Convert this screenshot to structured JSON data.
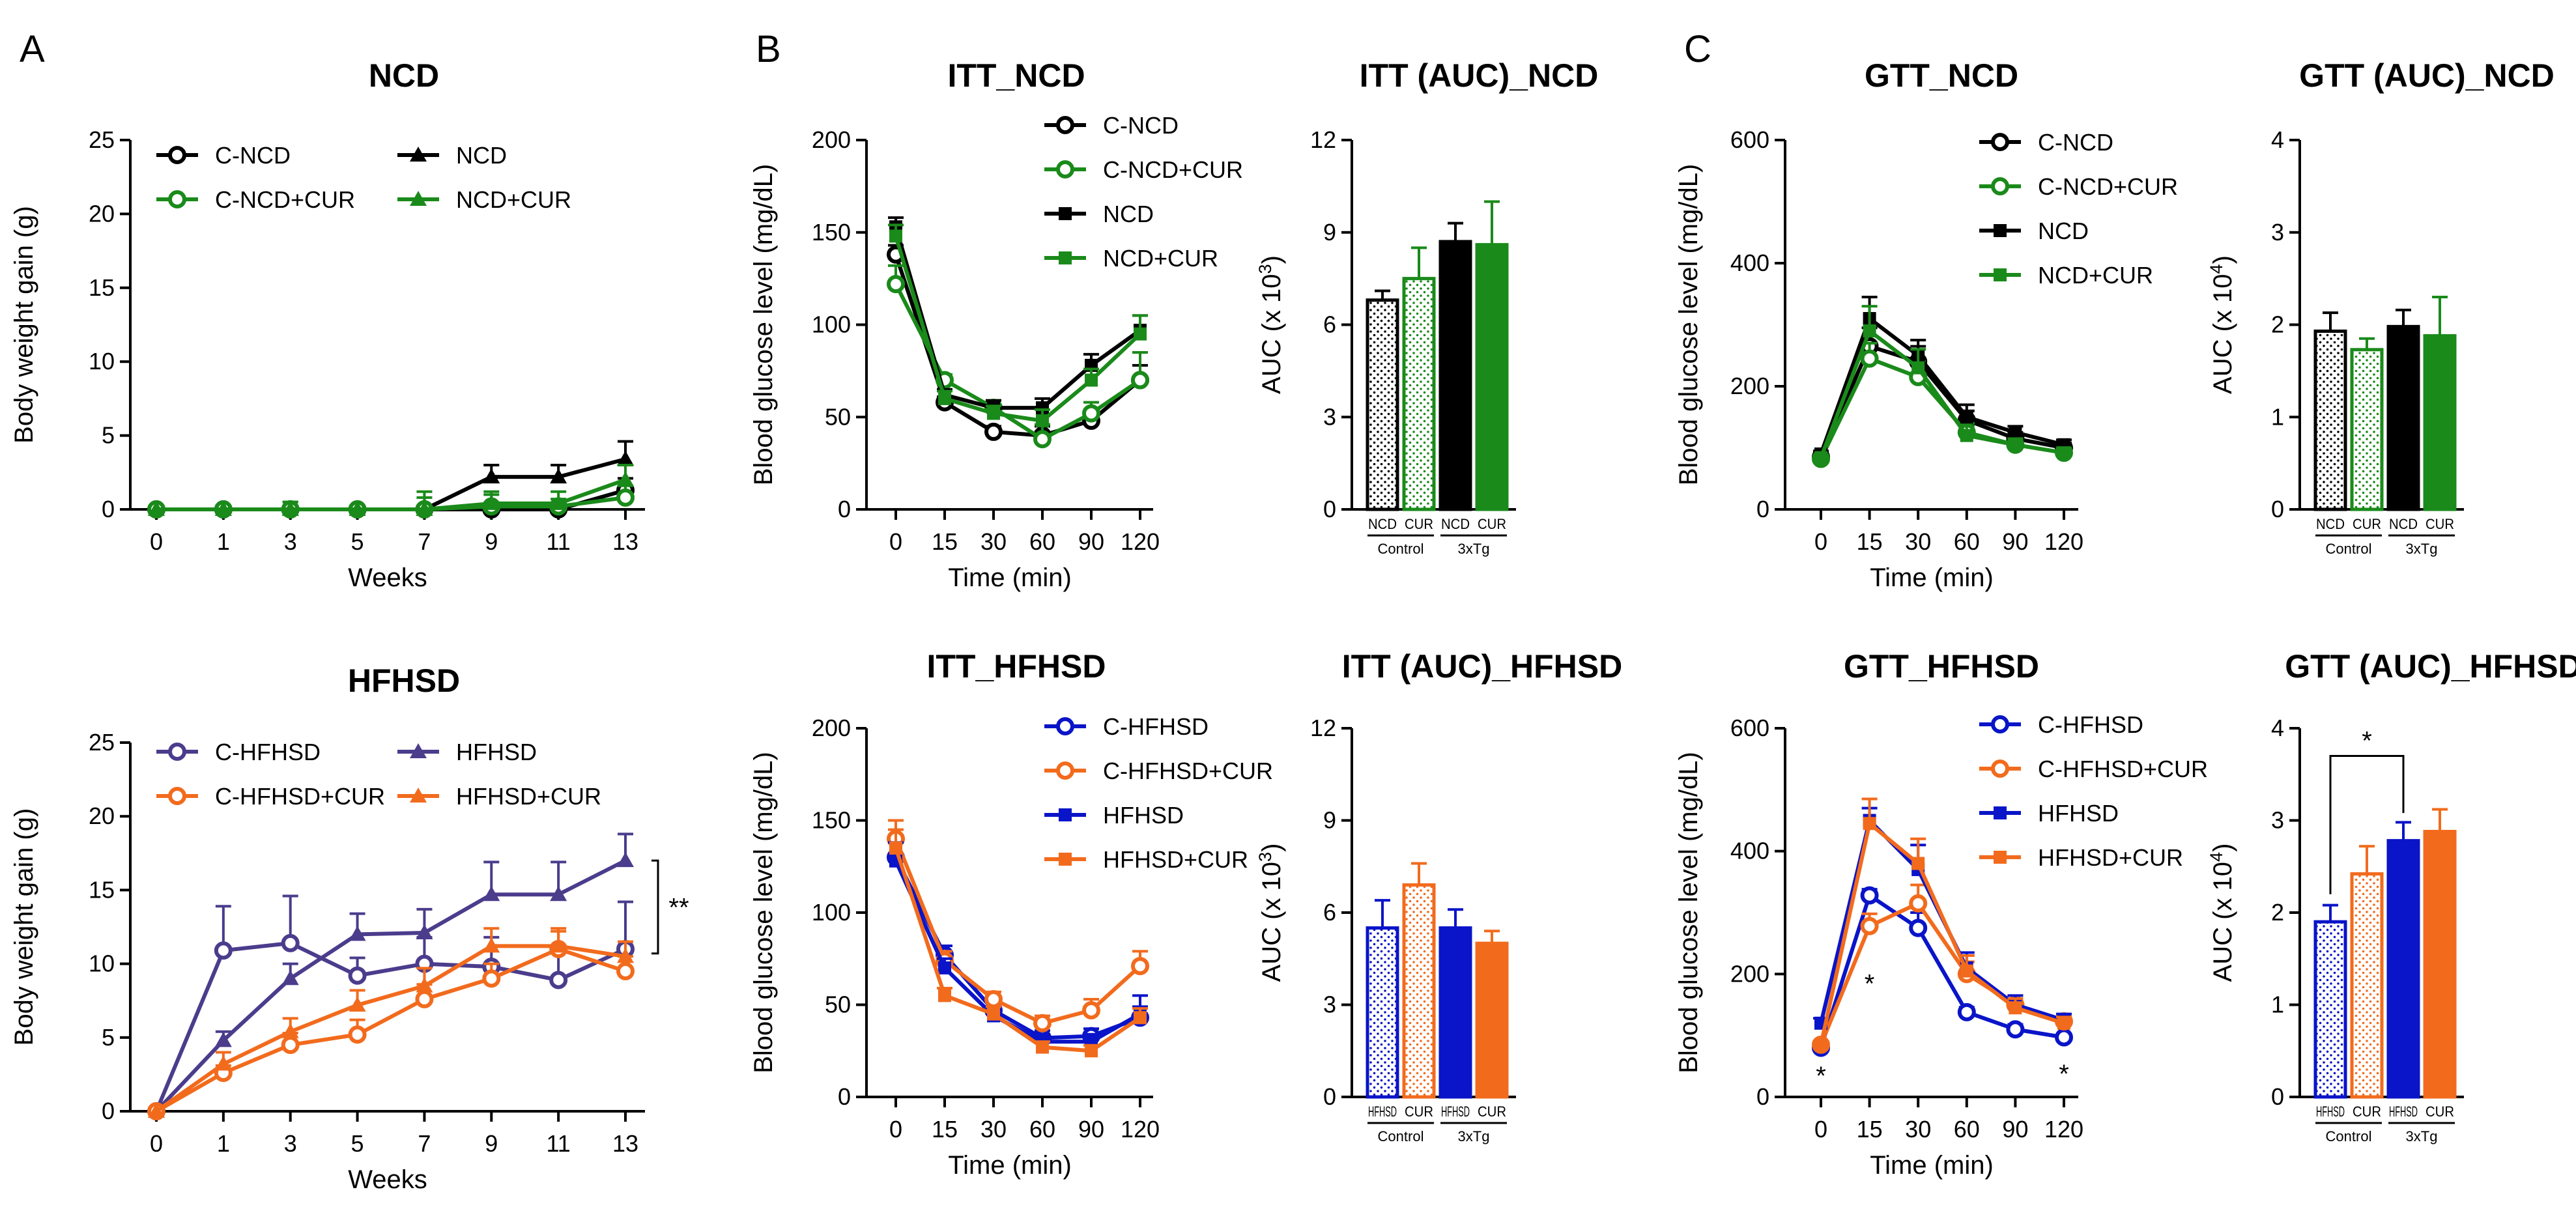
{
  "panel_letters": [
    "A",
    "B",
    "C"
  ],
  "colors": {
    "black": "#000000",
    "green": "#1a8a1a",
    "blue": "#0a14c8",
    "orange": "#f26b1d",
    "purple": "#4b3c8c"
  },
  "chart_data": [
    {
      "id": "bw_ncd",
      "type": "line",
      "title": "NCD",
      "xlabel": "Weeks",
      "ylabel": "Body weight gain (g)",
      "x": [
        "0",
        "1",
        "3",
        "5",
        "7",
        "9",
        "11",
        "13"
      ],
      "ylim": [
        0,
        25
      ],
      "yticks": [
        0,
        5,
        10,
        15,
        20,
        25
      ],
      "legend": "top-left",
      "legend_cols": 2,
      "series": [
        {
          "name": "C-NCD",
          "color": "black",
          "marker": "circle-open",
          "values": [
            0,
            0,
            0,
            0,
            0,
            0,
            0,
            1.3
          ],
          "errors": [
            0,
            0,
            0,
            0,
            0,
            0.3,
            0.3,
            0.8
          ]
        },
        {
          "name": "NCD",
          "color": "black",
          "marker": "triangle",
          "values": [
            0,
            0,
            0,
            0,
            0,
            2.2,
            2.2,
            3.4
          ],
          "errors": [
            0,
            0,
            0,
            0,
            0,
            0.8,
            0.8,
            1.2
          ]
        },
        {
          "name": "C-NCD+CUR",
          "color": "green",
          "marker": "circle-open",
          "values": [
            0,
            0,
            0,
            0,
            0,
            0.2,
            0.2,
            0.8
          ],
          "errors": [
            0,
            0,
            0.5,
            0,
            1.2,
            0.8,
            0.5,
            0.8
          ]
        },
        {
          "name": "NCD+CUR",
          "color": "green",
          "marker": "triangle",
          "values": [
            0,
            0,
            0,
            0,
            0,
            0.4,
            0.4,
            2.0
          ],
          "errors": [
            0,
            0,
            0.5,
            0,
            0.8,
            0.8,
            0.8,
            1.0
          ]
        }
      ]
    },
    {
      "id": "bw_hfhsd",
      "type": "line",
      "title": "HFHSD",
      "xlabel": "Weeks",
      "ylabel": "Body weight gain (g)",
      "x": [
        "0",
        "1",
        "3",
        "5",
        "7",
        "9",
        "11",
        "13"
      ],
      "ylim": [
        0,
        25
      ],
      "yticks": [
        0,
        5,
        10,
        15,
        20,
        25
      ],
      "legend": "top-left",
      "legend_cols": 2,
      "series": [
        {
          "name": "C-HFHSD",
          "color": "purple",
          "marker": "circle-open",
          "values": [
            0,
            10.9,
            11.4,
            9.2,
            10.0,
            9.8,
            8.9,
            11.0
          ],
          "errors": [
            0,
            3.0,
            3.2,
            1.2,
            1.8,
            2.0,
            2.0,
            3.2
          ]
        },
        {
          "name": "HFHSD",
          "color": "purple",
          "marker": "triangle",
          "values": [
            0,
            4.8,
            9.0,
            12.0,
            12.1,
            14.7,
            14.7,
            17.0
          ],
          "errors": [
            0,
            0.6,
            1.0,
            1.4,
            1.6,
            2.2,
            2.2,
            1.8
          ]
        },
        {
          "name": "C-HFHSD+CUR",
          "color": "orange",
          "marker": "circle-open",
          "values": [
            0,
            2.6,
            4.5,
            5.2,
            7.6,
            9.0,
            11.0,
            9.5
          ],
          "errors": [
            0,
            0.5,
            0.8,
            1.0,
            1.0,
            1.0,
            1.2,
            1.0
          ]
        },
        {
          "name": "HFHSD+CUR",
          "color": "orange",
          "marker": "triangle",
          "values": [
            0,
            3.2,
            5.4,
            7.2,
            8.5,
            11.2,
            11.2,
            10.5
          ],
          "errors": [
            0,
            0.8,
            0.9,
            1.0,
            1.2,
            1.2,
            1.2,
            1.0
          ]
        }
      ],
      "annotations": [
        {
          "text": "**",
          "x": "13",
          "y": 14.0
        }
      ]
    },
    {
      "id": "itt_ncd",
      "type": "line",
      "title": "ITT_NCD",
      "xlabel": "Time (min)",
      "ylabel": "Blood glucose level (mg/dL)",
      "x": [
        "0",
        "15",
        "30",
        "60",
        "90",
        "120"
      ],
      "ylim": [
        0,
        200
      ],
      "yticks": [
        0,
        50,
        100,
        150,
        200
      ],
      "legend": "top-right",
      "legend_cols": 1,
      "series": [
        {
          "name": "C-NCD",
          "color": "black",
          "marker": "circle-open",
          "values": [
            138,
            58,
            42,
            40,
            48,
            70
          ],
          "errors": [
            5,
            3,
            3,
            5,
            5,
            8
          ]
        },
        {
          "name": "C-NCD+CUR",
          "color": "green",
          "marker": "circle-open",
          "values": [
            122,
            70,
            55,
            38,
            52,
            70
          ],
          "errors": [
            10,
            3,
            4,
            8,
            6,
            15
          ]
        },
        {
          "name": "NCD",
          "color": "black",
          "marker": "square",
          "values": [
            153,
            62,
            55,
            55,
            78,
            97
          ],
          "errors": [
            5,
            3,
            4,
            5,
            6,
            8
          ]
        },
        {
          "name": "NCD+CUR",
          "color": "green",
          "marker": "square",
          "values": [
            148,
            60,
            52,
            48,
            70,
            95
          ],
          "errors": [
            6,
            4,
            4,
            6,
            6,
            10
          ]
        }
      ]
    },
    {
      "id": "itt_ncd_auc",
      "type": "bar",
      "title": "ITT (AUC)_NCD",
      "ylabel": "AUC (x 10",
      "ylabel_exp": "3",
      "ylabel_end": ")",
      "ylim": [
        0,
        12
      ],
      "yticks": [
        0,
        3,
        6,
        9,
        12
      ],
      "categories": [
        "NCD",
        "CUR",
        "NCD",
        "CUR"
      ],
      "groups": [
        "Control",
        "3xTg"
      ],
      "bars": [
        {
          "value": 6.8,
          "error": 0.3,
          "color": "black",
          "pattern": "dots"
        },
        {
          "value": 7.5,
          "error": 1.0,
          "color": "green",
          "pattern": "dots"
        },
        {
          "value": 8.7,
          "error": 0.6,
          "color": "black",
          "pattern": "solid"
        },
        {
          "value": 8.6,
          "error": 1.4,
          "color": "green",
          "pattern": "solid"
        }
      ]
    },
    {
      "id": "itt_hfhsd",
      "type": "line",
      "title": "ITT_HFHSD",
      "xlabel": "Time (min)",
      "ylabel": "Blood glucose level (mg/dL)",
      "x": [
        "0",
        "15",
        "30",
        "60",
        "90",
        "120"
      ],
      "ylim": [
        0,
        200
      ],
      "yticks": [
        0,
        50,
        100,
        150,
        200
      ],
      "legend": "top-right",
      "legend_cols": 1,
      "series": [
        {
          "name": "C-HFHSD",
          "color": "blue",
          "marker": "circle-open",
          "values": [
            130,
            77,
            47,
            32,
            33,
            43
          ],
          "errors": [
            8,
            5,
            4,
            4,
            4,
            6
          ]
        },
        {
          "name": "C-HFHSD+CUR",
          "color": "orange",
          "marker": "circle-open",
          "values": [
            140,
            74,
            53,
            40,
            47,
            71
          ],
          "errors": [
            10,
            5,
            4,
            4,
            6,
            8
          ]
        },
        {
          "name": "HFHSD",
          "color": "blue",
          "marker": "square",
          "values": [
            128,
            70,
            44,
            30,
            30,
            45
          ],
          "errors": [
            10,
            5,
            4,
            4,
            4,
            10
          ]
        },
        {
          "name": "HFHSD+CUR",
          "color": "orange",
          "marker": "square",
          "values": [
            135,
            55,
            45,
            27,
            25,
            43
          ],
          "errors": [
            10,
            4,
            4,
            3,
            3,
            5
          ]
        }
      ]
    },
    {
      "id": "itt_hfhsd_auc",
      "type": "bar",
      "title": "ITT (AUC)_HFHSD",
      "ylabel": "AUC (x 10",
      "ylabel_exp": "3",
      "ylabel_end": ")",
      "ylim": [
        0,
        12
      ],
      "yticks": [
        0,
        3,
        6,
        9,
        12
      ],
      "categories": [
        "HFHSD",
        "CUR",
        "HFHSD",
        "CUR"
      ],
      "groups": [
        "Control",
        "3xTg"
      ],
      "bars": [
        {
          "value": 5.5,
          "error": 0.9,
          "color": "blue",
          "pattern": "dots"
        },
        {
          "value": 6.9,
          "error": 0.7,
          "color": "orange",
          "pattern": "dots"
        },
        {
          "value": 5.5,
          "error": 0.6,
          "color": "blue",
          "pattern": "solid"
        },
        {
          "value": 5.0,
          "error": 0.4,
          "color": "orange",
          "pattern": "solid"
        }
      ]
    },
    {
      "id": "gtt_ncd",
      "type": "line",
      "title": "GTT_NCD",
      "xlabel": "Time (min)",
      "ylabel": "Blood glucose level (mg/dL)",
      "x": [
        "0",
        "15",
        "30",
        "60",
        "90",
        "120"
      ],
      "ylim": [
        0,
        600
      ],
      "yticks": [
        0,
        200,
        400,
        600
      ],
      "legend": "top-right",
      "legend_cols": 1,
      "series": [
        {
          "name": "C-NCD",
          "color": "black",
          "marker": "circle-open",
          "values": [
            85,
            265,
            240,
            145,
            115,
            100
          ],
          "errors": [
            5,
            30,
            25,
            15,
            10,
            8
          ]
        },
        {
          "name": "C-NCD+CUR",
          "color": "green",
          "marker": "circle-open",
          "values": [
            82,
            245,
            215,
            125,
            105,
            92
          ],
          "errors": [
            5,
            25,
            25,
            15,
            10,
            8
          ]
        },
        {
          "name": "NCD",
          "color": "black",
          "marker": "square",
          "values": [
            90,
            310,
            250,
            150,
            125,
            105
          ],
          "errors": [
            5,
            35,
            25,
            20,
            10,
            8
          ]
        },
        {
          "name": "NCD+CUR",
          "color": "green",
          "marker": "square",
          "values": [
            84,
            290,
            230,
            120,
            105,
            92
          ],
          "errors": [
            5,
            40,
            30,
            15,
            10,
            8
          ]
        }
      ]
    },
    {
      "id": "gtt_ncd_auc",
      "type": "bar",
      "title": "GTT (AUC)_NCD",
      "ylabel": "AUC (x 10",
      "ylabel_exp": "4",
      "ylabel_end": ")",
      "ylim": [
        0,
        4
      ],
      "yticks": [
        0,
        1,
        2,
        3,
        4
      ],
      "categories": [
        "NCD",
        "CUR",
        "NCD",
        "CUR"
      ],
      "groups": [
        "Control",
        "3xTg"
      ],
      "bars": [
        {
          "value": 1.93,
          "error": 0.2,
          "color": "black",
          "pattern": "dots"
        },
        {
          "value": 1.73,
          "error": 0.12,
          "color": "green",
          "pattern": "dots"
        },
        {
          "value": 1.98,
          "error": 0.18,
          "color": "black",
          "pattern": "solid"
        },
        {
          "value": 1.88,
          "error": 0.42,
          "color": "green",
          "pattern": "solid"
        }
      ]
    },
    {
      "id": "gtt_hfhsd",
      "type": "line",
      "title": "GTT_HFHSD",
      "xlabel": "Time (min)",
      "ylabel": "Blood glucose level (mg/dL)",
      "x": [
        "0",
        "15",
        "30",
        "60",
        "90",
        "120"
      ],
      "ylim": [
        0,
        600
      ],
      "yticks": [
        0,
        200,
        400,
        600
      ],
      "legend": "top-right",
      "legend_cols": 1,
      "series": [
        {
          "name": "C-HFHSD",
          "color": "blue",
          "marker": "circle-open",
          "values": [
            80,
            328,
            275,
            138,
            110,
            97
          ],
          "errors": [
            5,
            10,
            25,
            8,
            8,
            6
          ]
        },
        {
          "name": "C-HFHSD+CUR",
          "color": "orange",
          "marker": "circle-open",
          "values": [
            85,
            278,
            315,
            200,
            150,
            123
          ],
          "errors": [
            5,
            20,
            30,
            20,
            15,
            8
          ]
        },
        {
          "name": "HFHSD",
          "color": "blue",
          "marker": "square",
          "values": [
            120,
            450,
            370,
            210,
            150,
            125
          ],
          "errors": [
            8,
            20,
            40,
            25,
            15,
            10
          ]
        },
        {
          "name": "HFHSD+CUR",
          "color": "orange",
          "marker": "square",
          "values": [
            85,
            445,
            380,
            205,
            145,
            120
          ],
          "errors": [
            5,
            40,
            40,
            25,
            15,
            10
          ]
        }
      ],
      "annotations": [
        {
          "text": "*",
          "x": "0",
          "y": 35
        },
        {
          "text": "*",
          "x": "15",
          "y": 185
        },
        {
          "text": "*",
          "x": "120",
          "y": 38
        }
      ]
    },
    {
      "id": "gtt_hfhsd_auc",
      "type": "bar",
      "title": "GTT (AUC)_HFHSD",
      "ylabel": "AUC (x 10",
      "ylabel_exp": "4",
      "ylabel_end": ")",
      "ylim": [
        0,
        4
      ],
      "yticks": [
        0,
        1,
        2,
        3,
        4
      ],
      "categories": [
        "HFHSD",
        "CUR",
        "HFHSD",
        "CUR"
      ],
      "groups": [
        "Control",
        "3xTg"
      ],
      "bars": [
        {
          "value": 1.9,
          "error": 0.18,
          "color": "blue",
          "pattern": "dots"
        },
        {
          "value": 2.42,
          "error": 0.3,
          "color": "orange",
          "pattern": "dots"
        },
        {
          "value": 2.78,
          "error": 0.2,
          "color": "blue",
          "pattern": "solid"
        },
        {
          "value": 2.88,
          "error": 0.24,
          "color": "orange",
          "pattern": "solid"
        }
      ],
      "significance": {
        "text": "*",
        "from": 0,
        "to": 2,
        "y": 3.7
      }
    }
  ]
}
